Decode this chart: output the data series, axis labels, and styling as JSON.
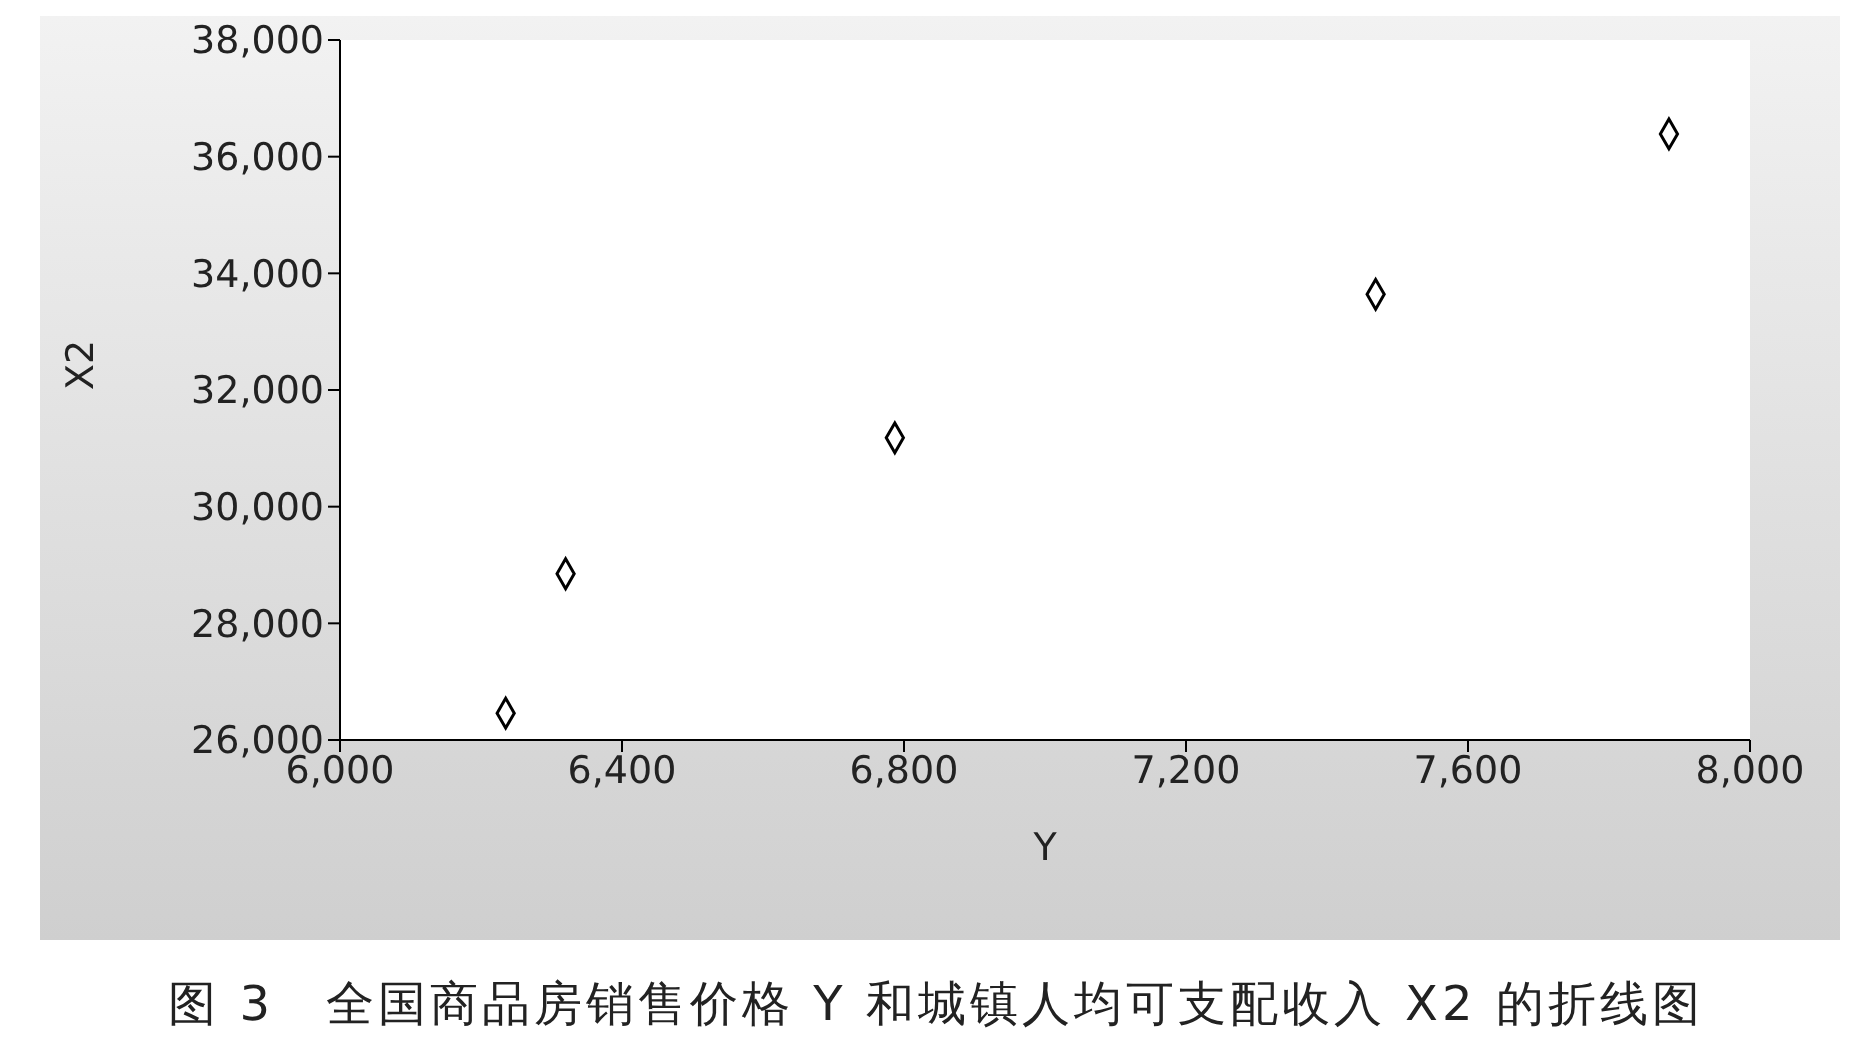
{
  "chart_data": {
    "type": "scatter",
    "xlabel": "Y",
    "ylabel": "X2",
    "x": [
      6235,
      6320,
      6787,
      7469,
      7885
    ],
    "series": [
      {
        "color": "#000000",
        "values": [
          26460,
          28850,
          31180,
          33640,
          36390
        ]
      }
    ],
    "xlim": [
      6000,
      8000
    ],
    "xticks": [
      {
        "value": 6000,
        "label": "6,000"
      },
      {
        "value": 6400,
        "label": "6,400"
      },
      {
        "value": 6800,
        "label": "6,800"
      },
      {
        "value": 7200,
        "label": "7,200"
      },
      {
        "value": 7600,
        "label": "7,600"
      },
      {
        "value": 8000,
        "label": "8,000"
      }
    ],
    "ylim": [
      26000,
      38000
    ],
    "yticks": [
      {
        "value": 26000,
        "label": "26,000"
      },
      {
        "value": 28000,
        "label": "28,000"
      },
      {
        "value": 30000,
        "label": "30,000"
      },
      {
        "value": 32000,
        "label": "32,000"
      },
      {
        "value": 34000,
        "label": "34,000"
      },
      {
        "value": 36000,
        "label": "36,000"
      },
      {
        "value": 38000,
        "label": "38,000"
      }
    ],
    "marker": "diamond",
    "grid": false,
    "legend": false,
    "annotations": [
      "图 3　全国商品房销售价格 Y 和城镇人均可支配收入 X2 的折线图"
    ]
  }
}
